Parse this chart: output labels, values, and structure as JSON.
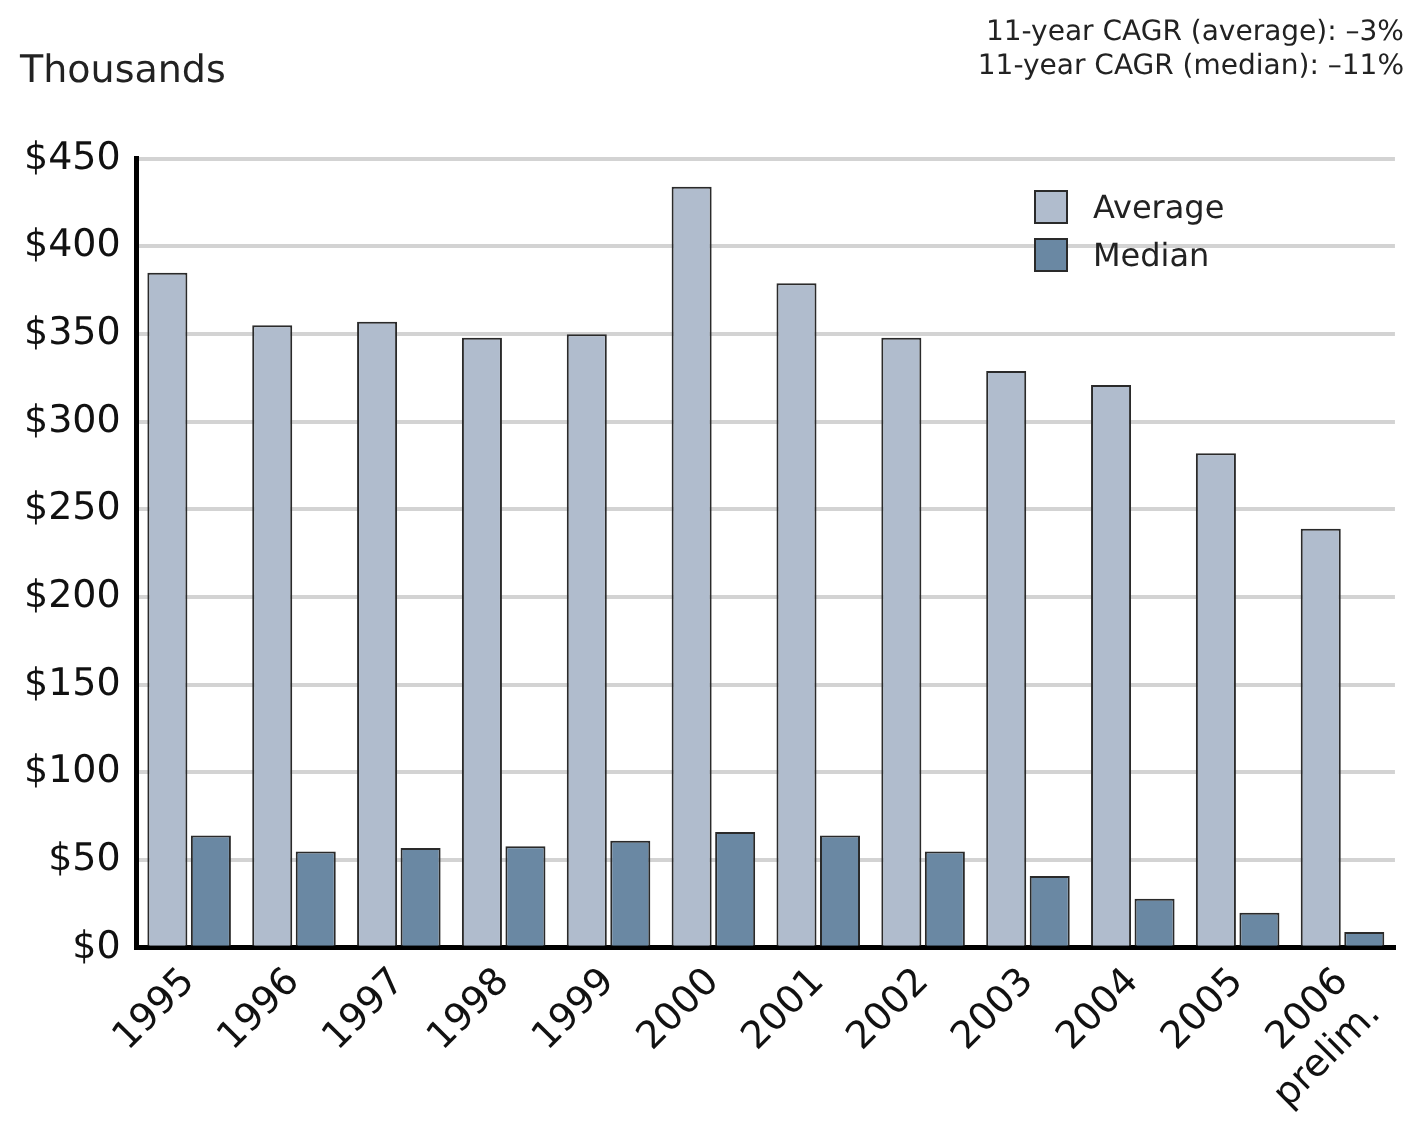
{
  "chart_data": {
    "type": "bar",
    "ylabel": "Thousands",
    "annotations": [
      "11-year CAGR (average): –3%",
      "11-year CAGR (median): –11%"
    ],
    "categories": [
      "1995",
      "1996",
      "1997",
      "1998",
      "1999",
      "2000",
      "2001",
      "2002",
      "2003",
      "2004",
      "2005",
      "2006\nprelim."
    ],
    "series": [
      {
        "name": "Average",
        "color": "#b0bccd",
        "values": [
          385,
          355,
          357,
          348,
          350,
          434,
          379,
          348,
          329,
          321,
          282,
          239
        ]
      },
      {
        "name": "Median",
        "color": "#6a88a3",
        "values": [
          64,
          55,
          57,
          58,
          61,
          66,
          64,
          55,
          41,
          28,
          20,
          9
        ]
      }
    ],
    "ylim": [
      0,
      450
    ],
    "yticks": [
      {
        "value": 0,
        "label": "$0"
      },
      {
        "value": 50,
        "label": "$50"
      },
      {
        "value": 100,
        "label": "$100"
      },
      {
        "value": 150,
        "label": "$150"
      },
      {
        "value": 200,
        "label": "$200"
      },
      {
        "value": 250,
        "label": "$250"
      },
      {
        "value": 300,
        "label": "$300"
      },
      {
        "value": 350,
        "label": "$350"
      },
      {
        "value": 400,
        "label": "$400"
      },
      {
        "value": 450,
        "label": "$450"
      }
    ],
    "grid": "y",
    "legend": "top right"
  }
}
